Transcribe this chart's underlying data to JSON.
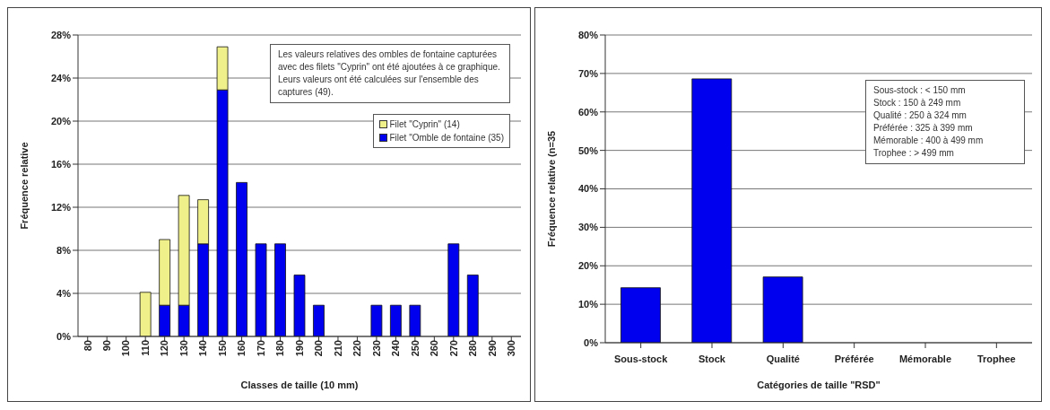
{
  "chart_data": [
    {
      "type": "bar",
      "stacked": true,
      "xlabel": "Classes de taille (10 mm)",
      "ylabel": "Fréquence relative",
      "categories": [
        "80",
        "90",
        "100",
        "110",
        "120",
        "130",
        "140",
        "150",
        "160",
        "170",
        "180",
        "190",
        "200",
        "210",
        "220",
        "230",
        "240",
        "250",
        "260",
        "270",
        "280",
        "290",
        "300"
      ],
      "series": [
        {
          "name": "Filet \"Omble de fontaine (35)",
          "color": "#0000ee",
          "values": [
            0,
            0,
            0,
            0,
            2.9,
            2.9,
            8.6,
            22.9,
            14.3,
            8.6,
            8.6,
            5.7,
            2.9,
            0,
            0,
            2.9,
            2.9,
            2.9,
            0,
            8.6,
            5.7,
            0,
            0
          ]
        },
        {
          "name": "Filet \"Cyprin\" (14)",
          "color": "#f0f08a",
          "values": [
            0,
            0,
            0,
            4.1,
            6.1,
            10.2,
            4.1,
            4.0,
            0,
            0,
            0,
            0,
            0,
            0,
            0,
            0,
            0,
            0,
            0,
            0,
            0,
            0,
            0
          ]
        }
      ],
      "ylim": [
        0,
        28
      ],
      "yticks": [
        {
          "value": 0,
          "label": "0%"
        },
        {
          "value": 4,
          "label": "4%"
        },
        {
          "value": 8,
          "label": "8%"
        },
        {
          "value": 12,
          "label": "12%"
        },
        {
          "value": 16,
          "label": "16%"
        },
        {
          "value": 20,
          "label": "20%"
        },
        {
          "value": 24,
          "label": "24%"
        },
        {
          "value": 28,
          "label": "28%"
        }
      ],
      "grid": "y",
      "legend": "top right",
      "annotations": [
        "Les valeurs relatives des ombles de fontaine capturées avec des filets \"Cyprin\" ont été ajoutées à ce graphique. Leurs valeurs ont été calculées sur l'ensemble des captures (49)."
      ]
    },
    {
      "type": "bar",
      "xlabel": "Catégories de taille \"RSD\"",
      "ylabel": "Fréquence relative (n=35",
      "categories": [
        "Sous-stock",
        "Stock",
        "Qualité",
        "Préférée",
        "Mémorable",
        "Trophee"
      ],
      "values": [
        14.3,
        68.6,
        17.1,
        0,
        0,
        0
      ],
      "color": "#0000ee",
      "ylim": [
        0,
        80
      ],
      "yticks": [
        {
          "value": 0,
          "label": "0%"
        },
        {
          "value": 10,
          "label": "10%"
        },
        {
          "value": 20,
          "label": "20%"
        },
        {
          "value": 30,
          "label": "30%"
        },
        {
          "value": 40,
          "label": "40%"
        },
        {
          "value": 50,
          "label": "50%"
        },
        {
          "value": 60,
          "label": "60%"
        },
        {
          "value": 70,
          "label": "70%"
        },
        {
          "value": 80,
          "label": "80%"
        }
      ],
      "grid": "y",
      "annotations": [
        "Sous-stock : < 150 mm",
        "Stock : 150 à 249 mm",
        "Qualité : 250 à 324 mm",
        "Préférée : 325 à 399 mm",
        "Mémorable : 400 à 499 mm",
        "Trophee : > 499 mm"
      ]
    }
  ]
}
